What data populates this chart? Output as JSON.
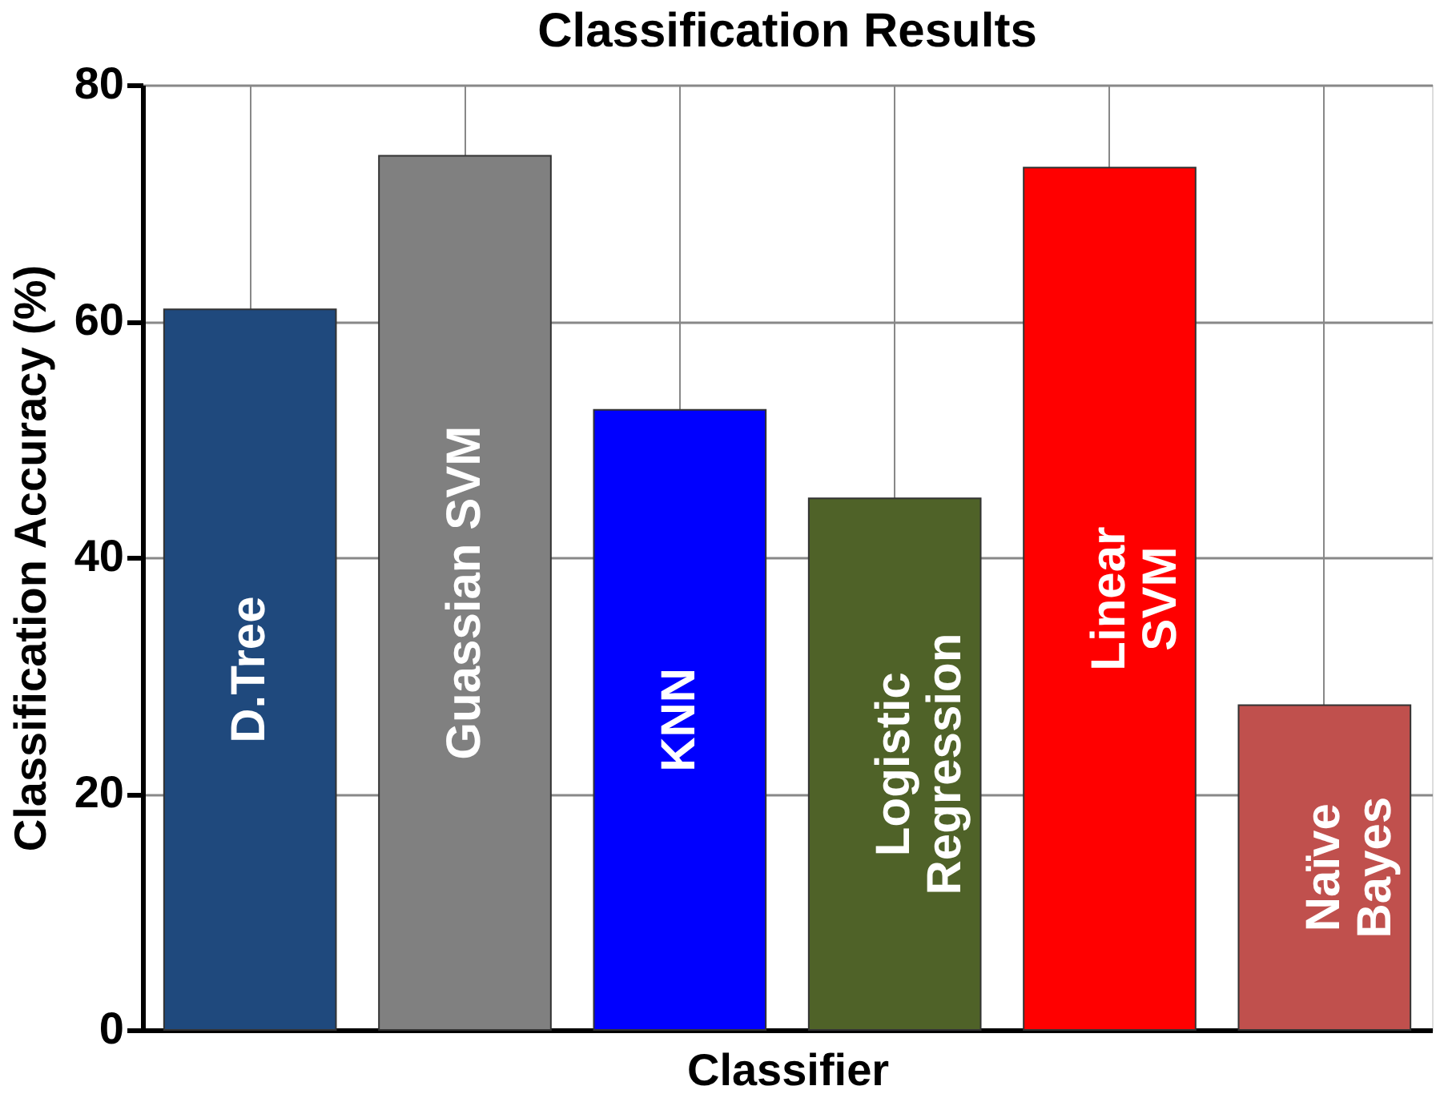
{
  "chart_data": {
    "type": "bar",
    "title": "Classification Results",
    "xlabel": "Classifier",
    "ylabel": "Classification Accuracy (%)",
    "categories": [
      "D.Tree",
      "Guassian SVM",
      "KNN",
      "Logistic\nRegression",
      "Linear\nSVM",
      "Naïve\nBayes"
    ],
    "values": [
      61,
      74,
      52.5,
      45,
      73,
      27.5
    ],
    "colors": [
      "#1f497d",
      "#808080",
      "#0000ff",
      "#4f6228",
      "#ff0000",
      "#c0504d"
    ],
    "ylim": [
      0,
      80
    ],
    "yticks": [
      0,
      20,
      40,
      60,
      80
    ],
    "grid": true,
    "tick_labels": "y"
  }
}
